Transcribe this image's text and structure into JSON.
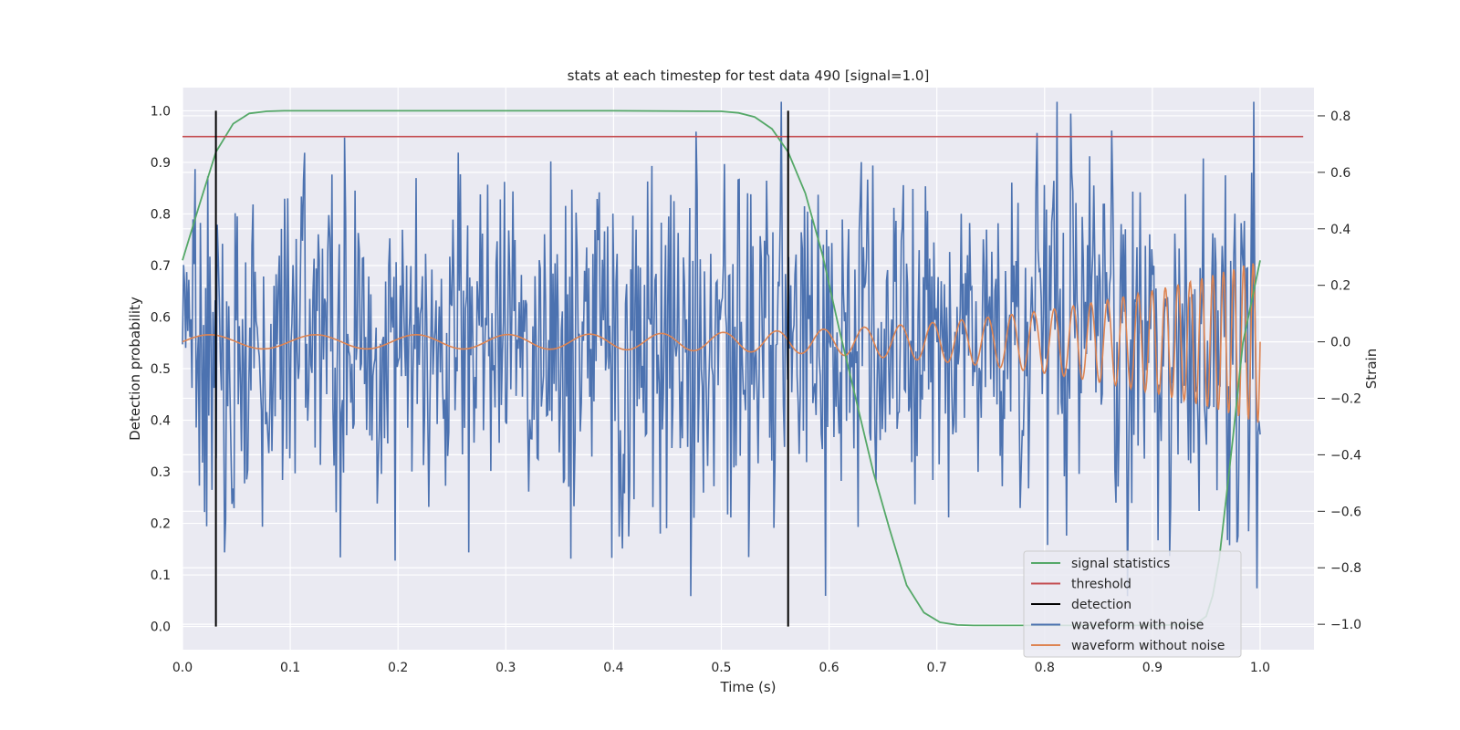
{
  "chart_data": {
    "type": "line",
    "title": "stats at each timestep for test data 490 [signal=1.0]",
    "xlabel": "Time (s)",
    "ylabel_left": "Detection probability",
    "ylabel_right": "Strain",
    "xlim": [
      0.0,
      1.05
    ],
    "ylim_left": [
      -0.045,
      1.045
    ],
    "ylim_right": [
      -1.09,
      0.9
    ],
    "x_ticks": [
      0.0,
      0.1,
      0.2,
      0.3,
      0.4,
      0.5,
      0.6,
      0.7,
      0.8,
      0.9,
      1.0
    ],
    "x_tick_labels": [
      "0.0",
      "0.1",
      "0.2",
      "0.3",
      "0.4",
      "0.5",
      "0.6",
      "0.7",
      "0.8",
      "0.9",
      "1.0"
    ],
    "y_left_ticks": [
      0.0,
      0.1,
      0.2,
      0.3,
      0.4,
      0.5,
      0.6,
      0.7,
      0.8,
      0.9,
      1.0
    ],
    "y_left_tick_labels": [
      "0.0",
      "0.1",
      "0.2",
      "0.3",
      "0.4",
      "0.5",
      "0.6",
      "0.7",
      "0.8",
      "0.9",
      "1.0"
    ],
    "y_right_ticks": [
      0.8,
      0.6,
      0.4,
      0.2,
      0.0,
      -0.2,
      -0.4,
      -0.6,
      -0.8,
      -1.0
    ],
    "y_right_tick_labels": [
      "0.8",
      "0.6",
      "0.4",
      "0.2",
      "0.0",
      "−0.2",
      "−0.4",
      "−0.6",
      "−0.8",
      "−1.0"
    ],
    "grid": true,
    "legend_position": "lower-right",
    "series": [
      {
        "name": "signal statistics",
        "axis": "left",
        "color": "#55a868",
        "x": [
          0.0,
          0.016,
          0.031,
          0.047,
          0.062,
          0.078,
          0.094,
          0.2,
          0.3,
          0.4,
          0.5,
          0.516,
          0.531,
          0.547,
          0.562,
          0.578,
          0.594,
          0.609,
          0.625,
          0.641,
          0.656,
          0.672,
          0.688,
          0.703,
          0.719,
          0.734,
          0.8,
          0.9,
          0.94,
          0.95,
          0.956,
          0.962,
          0.968,
          0.975,
          0.984,
          1.0
        ],
        "y": [
          0.71,
          0.82,
          0.92,
          0.975,
          0.995,
          0.999,
          1.0,
          1.0,
          1.0,
          1.0,
          0.999,
          0.996,
          0.988,
          0.965,
          0.92,
          0.84,
          0.72,
          0.58,
          0.44,
          0.3,
          0.19,
          0.08,
          0.027,
          0.008,
          0.003,
          0.002,
          0.002,
          0.002,
          0.004,
          0.02,
          0.06,
          0.13,
          0.24,
          0.37,
          0.55,
          0.71
        ]
      },
      {
        "name": "threshold",
        "axis": "left",
        "color": "#c44e52",
        "x": [
          0.0,
          1.04
        ],
        "y": [
          0.95,
          0.95
        ]
      },
      {
        "name": "detection",
        "axis": "left",
        "color": "#000000",
        "x": [
          0.031,
          0.562
        ],
        "y": [
          0.0,
          1.0
        ]
      },
      {
        "name": "waveform with noise",
        "axis": "right",
        "color": "#4c72b0",
        "x_range": [
          0.0,
          1.0
        ],
        "amplitude": 0.3
      },
      {
        "name": "waveform without noise",
        "axis": "right",
        "color": "#dd8452",
        "x_range": [
          0.0,
          1.0
        ],
        "amplitude_start": 0.025,
        "amplitude_end": 0.29
      }
    ]
  }
}
